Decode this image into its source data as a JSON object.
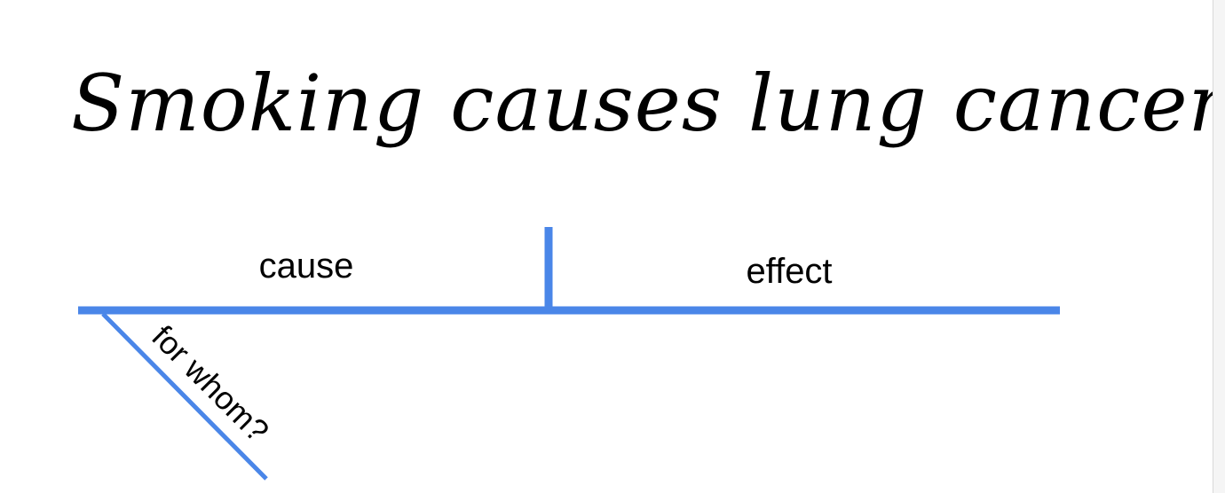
{
  "title": "Smoking causes lung cancer",
  "diagram": {
    "cause_label": "cause",
    "effect_label": "effect",
    "branch_label": "for whom?",
    "line_color": "#4a86e8"
  }
}
